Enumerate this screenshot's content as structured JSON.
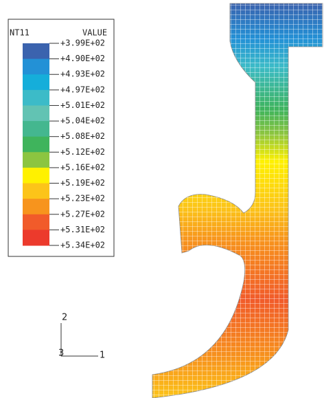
{
  "legend": {
    "variable": "NT11",
    "header": "VALUE",
    "labels": [
      "+3.99E+02",
      "+4.90E+02",
      "+4.93E+02",
      "+4.97E+02",
      "+5.01E+02",
      "+5.04E+02",
      "+5.08E+02",
      "+5.12E+02",
      "+5.16E+02",
      "+5.19E+02",
      "+5.23E+02",
      "+5.27E+02",
      "+5.31E+02",
      "+5.34E+02"
    ],
    "colors": [
      "#3b63ae",
      "#2391d6",
      "#15aeda",
      "#3cbbc8",
      "#62c3b3",
      "#44b78f",
      "#3fb45c",
      "#8cc540",
      "#fff100",
      "#fcc419",
      "#f7941d",
      "#f15b2a",
      "#ec3a2c"
    ]
  },
  "triad": {
    "y": "2",
    "z": "3",
    "x": "1"
  }
}
